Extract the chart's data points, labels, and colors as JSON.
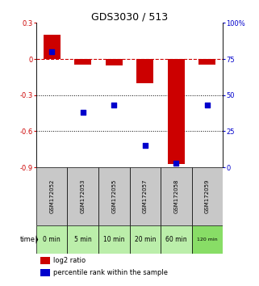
{
  "title": "GDS3030 / 513",
  "samples": [
    "GSM172052",
    "GSM172053",
    "GSM172055",
    "GSM172057",
    "GSM172058",
    "GSM172059"
  ],
  "time_labels": [
    "0 min",
    "5 min",
    "10 min",
    "20 min",
    "60 min",
    "120 min"
  ],
  "log2_ratio": [
    0.2,
    -0.05,
    -0.055,
    -0.2,
    -0.87,
    -0.05
  ],
  "percentile_rank": [
    80,
    38,
    43,
    15,
    3,
    43
  ],
  "ylim_left": [
    -0.9,
    0.3
  ],
  "ylim_right": [
    0,
    100
  ],
  "yticks_left": [
    0.3,
    0.0,
    -0.3,
    -0.6,
    -0.9
  ],
  "ytick_labels_left": [
    "0.3",
    "0",
    "-0.3",
    "-0.6",
    "-0.9"
  ],
  "yticks_right": [
    100,
    75,
    50,
    25,
    0
  ],
  "ytick_labels_right": [
    "100%",
    "75",
    "50",
    "25",
    "0"
  ],
  "bar_color": "#cc0000",
  "dot_color": "#0000cc",
  "grid_color": "#000000",
  "bg_gray": "#c8c8c8",
  "bg_green_light": "#bbeeaa",
  "bg_green_dark": "#88dd66",
  "legend_red_label": "log2 ratio",
  "legend_blue_label": "percentile rank within the sample",
  "bar_width": 0.55,
  "dot_size": 25
}
